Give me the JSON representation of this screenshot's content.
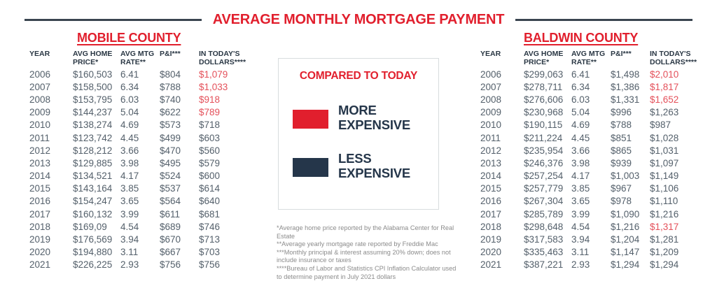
{
  "title": "AVERAGE MONTHLY MORTGAGE PAYMENT",
  "colors": {
    "accent_red": "#E11F2D",
    "value_red": "#E4505A",
    "navy": "#25364A",
    "header_text": "#2A3744",
    "row_text": "#54606B",
    "rule": "#3A4550",
    "legend_border": "#D8DCDE",
    "footnote_gray": "#8B8B8B"
  },
  "legend": {
    "title": "COMPARED TO TODAY",
    "items": [
      {
        "swatch_color": "#E11F2D",
        "label": "MORE\nEXPENSIVE"
      },
      {
        "swatch_color": "#25364A",
        "label": "LESS\nEXPENSIVE"
      }
    ]
  },
  "footnotes": [
    "*Average home price reported by the Alabama Center for Real Estate",
    "**Average yearly mortgage rate reported by Freddie Mac",
    "***Monthly principal & interest assuming 20% down; does not include insurance or taxes",
    "****Bureau of Labor and Statistics CPI Inflation Calculator used to determine payment in July 2021 dollars"
  ],
  "chart_data": [
    {
      "type": "table",
      "title": "MOBILE COUNTY",
      "columns": [
        "YEAR",
        "AVG HOME\nPRICE*",
        "AVG MTG\nRATE**",
        "P&I***",
        "IN TODAY'S\nDOLLARS****"
      ],
      "rows": [
        {
          "year": "2006",
          "avg_home_price": "$160,503",
          "avg_mtg_rate": "6.41",
          "pi": "$804",
          "in_todays_dollars": "$1,079",
          "more_expensive": true
        },
        {
          "year": "2007",
          "avg_home_price": "$158,500",
          "avg_mtg_rate": "6.34",
          "pi": "$788",
          "in_todays_dollars": "$1,033",
          "more_expensive": true
        },
        {
          "year": "2008",
          "avg_home_price": "$153,795",
          "avg_mtg_rate": "6.03",
          "pi": "$740",
          "in_todays_dollars": "$918",
          "more_expensive": true
        },
        {
          "year": "2009",
          "avg_home_price": "$144,237",
          "avg_mtg_rate": "5.04",
          "pi": "$622",
          "in_todays_dollars": "$789",
          "more_expensive": true
        },
        {
          "year": "2010",
          "avg_home_price": "$138,274",
          "avg_mtg_rate": "4.69",
          "pi": "$573",
          "in_todays_dollars": "$718",
          "more_expensive": false
        },
        {
          "year": "2011",
          "avg_home_price": "$123,742",
          "avg_mtg_rate": "4.45",
          "pi": "$499",
          "in_todays_dollars": "$603",
          "more_expensive": false
        },
        {
          "year": "2012",
          "avg_home_price": "$128,212",
          "avg_mtg_rate": "3.66",
          "pi": "$470",
          "in_todays_dollars": "$560",
          "more_expensive": false
        },
        {
          "year": "2013",
          "avg_home_price": "$129,885",
          "avg_mtg_rate": "3.98",
          "pi": "$495",
          "in_todays_dollars": "$579",
          "more_expensive": false
        },
        {
          "year": "2014",
          "avg_home_price": "$134,521",
          "avg_mtg_rate": "4.17",
          "pi": "$524",
          "in_todays_dollars": "$600",
          "more_expensive": false
        },
        {
          "year": "2015",
          "avg_home_price": "$143,164",
          "avg_mtg_rate": "3.85",
          "pi": "$537",
          "in_todays_dollars": "$614",
          "more_expensive": false
        },
        {
          "year": "2016",
          "avg_home_price": "$154,247",
          "avg_mtg_rate": "3.65",
          "pi": "$564",
          "in_todays_dollars": "$640",
          "more_expensive": false
        },
        {
          "year": "2017",
          "avg_home_price": "$160,132",
          "avg_mtg_rate": "3.99",
          "pi": "$611",
          "in_todays_dollars": "$681",
          "more_expensive": false
        },
        {
          "year": "2018",
          "avg_home_price": "$169,09",
          "avg_mtg_rate": "4.54",
          "pi": "$689",
          "in_todays_dollars": "$746",
          "more_expensive": false
        },
        {
          "year": "2019",
          "avg_home_price": "$176,569",
          "avg_mtg_rate": "3.94",
          "pi": "$670",
          "in_todays_dollars": "$713",
          "more_expensive": false
        },
        {
          "year": "2020",
          "avg_home_price": "$194,880",
          "avg_mtg_rate": "3.11",
          "pi": "$667",
          "in_todays_dollars": "$703",
          "more_expensive": false
        },
        {
          "year": "2021",
          "avg_home_price": "$226,225",
          "avg_mtg_rate": "2.93",
          "pi": "$756",
          "in_todays_dollars": "$756",
          "more_expensive": false
        }
      ]
    },
    {
      "type": "table",
      "title": "BALDWIN COUNTY",
      "columns": [
        "YEAR",
        "AVG HOME\nPRICE*",
        "AVG MTG\nRATE**",
        "P&I***",
        "IN TODAY'S\nDOLLARS****"
      ],
      "rows": [
        {
          "year": "2006",
          "avg_home_price": "$299,063",
          "avg_mtg_rate": "6.41",
          "pi": "$1,498",
          "in_todays_dollars": "$2,010",
          "more_expensive": true
        },
        {
          "year": "2007",
          "avg_home_price": "$278,711",
          "avg_mtg_rate": "6.34",
          "pi": "$1,386",
          "in_todays_dollars": "$1,817",
          "more_expensive": true
        },
        {
          "year": "2008",
          "avg_home_price": "$276,606",
          "avg_mtg_rate": "6.03",
          "pi": "$1,331",
          "in_todays_dollars": "$1,652",
          "more_expensive": true
        },
        {
          "year": "2009",
          "avg_home_price": "$230,968",
          "avg_mtg_rate": "5.04",
          "pi": "$996",
          "in_todays_dollars": "$1,263",
          "more_expensive": false
        },
        {
          "year": "2010",
          "avg_home_price": "$190,115",
          "avg_mtg_rate": "4.69",
          "pi": "$788",
          "in_todays_dollars": "$987",
          "more_expensive": false
        },
        {
          "year": "2011",
          "avg_home_price": "$211,224",
          "avg_mtg_rate": "4.45",
          "pi": "$851",
          "in_todays_dollars": "$1,028",
          "more_expensive": false
        },
        {
          "year": "2012",
          "avg_home_price": "$235,954",
          "avg_mtg_rate": "3.66",
          "pi": "$865",
          "in_todays_dollars": "$1,031",
          "more_expensive": false
        },
        {
          "year": "2013",
          "avg_home_price": "$246,376",
          "avg_mtg_rate": "3.98",
          "pi": "$939",
          "in_todays_dollars": "$1,097",
          "more_expensive": false
        },
        {
          "year": "2014",
          "avg_home_price": "$257,254",
          "avg_mtg_rate": "4.17",
          "pi": "$1,003",
          "in_todays_dollars": "$1,149",
          "more_expensive": false
        },
        {
          "year": "2015",
          "avg_home_price": "$257,779",
          "avg_mtg_rate": "3.85",
          "pi": "$967",
          "in_todays_dollars": "$1,106",
          "more_expensive": false
        },
        {
          "year": "2016",
          "avg_home_price": "$267,304",
          "avg_mtg_rate": "3.65",
          "pi": "$978",
          "in_todays_dollars": "$1,110",
          "more_expensive": false
        },
        {
          "year": "2017",
          "avg_home_price": "$285,789",
          "avg_mtg_rate": "3.99",
          "pi": "$1,090",
          "in_todays_dollars": "$1,216",
          "more_expensive": false
        },
        {
          "year": "2018",
          "avg_home_price": "$298,648",
          "avg_mtg_rate": "4.54",
          "pi": "$1,216",
          "in_todays_dollars": "$1,317",
          "more_expensive": true
        },
        {
          "year": "2019",
          "avg_home_price": "$317,583",
          "avg_mtg_rate": "3.94",
          "pi": "$1,204",
          "in_todays_dollars": "$1,281",
          "more_expensive": false
        },
        {
          "year": "2020",
          "avg_home_price": "$335,463",
          "avg_mtg_rate": "3.11",
          "pi": "$1,147",
          "in_todays_dollars": "$1,209",
          "more_expensive": false
        },
        {
          "year": "2021",
          "avg_home_price": "$387,221",
          "avg_mtg_rate": "2.93",
          "pi": "$1,294",
          "in_todays_dollars": "$1,294",
          "more_expensive": false
        }
      ]
    }
  ]
}
